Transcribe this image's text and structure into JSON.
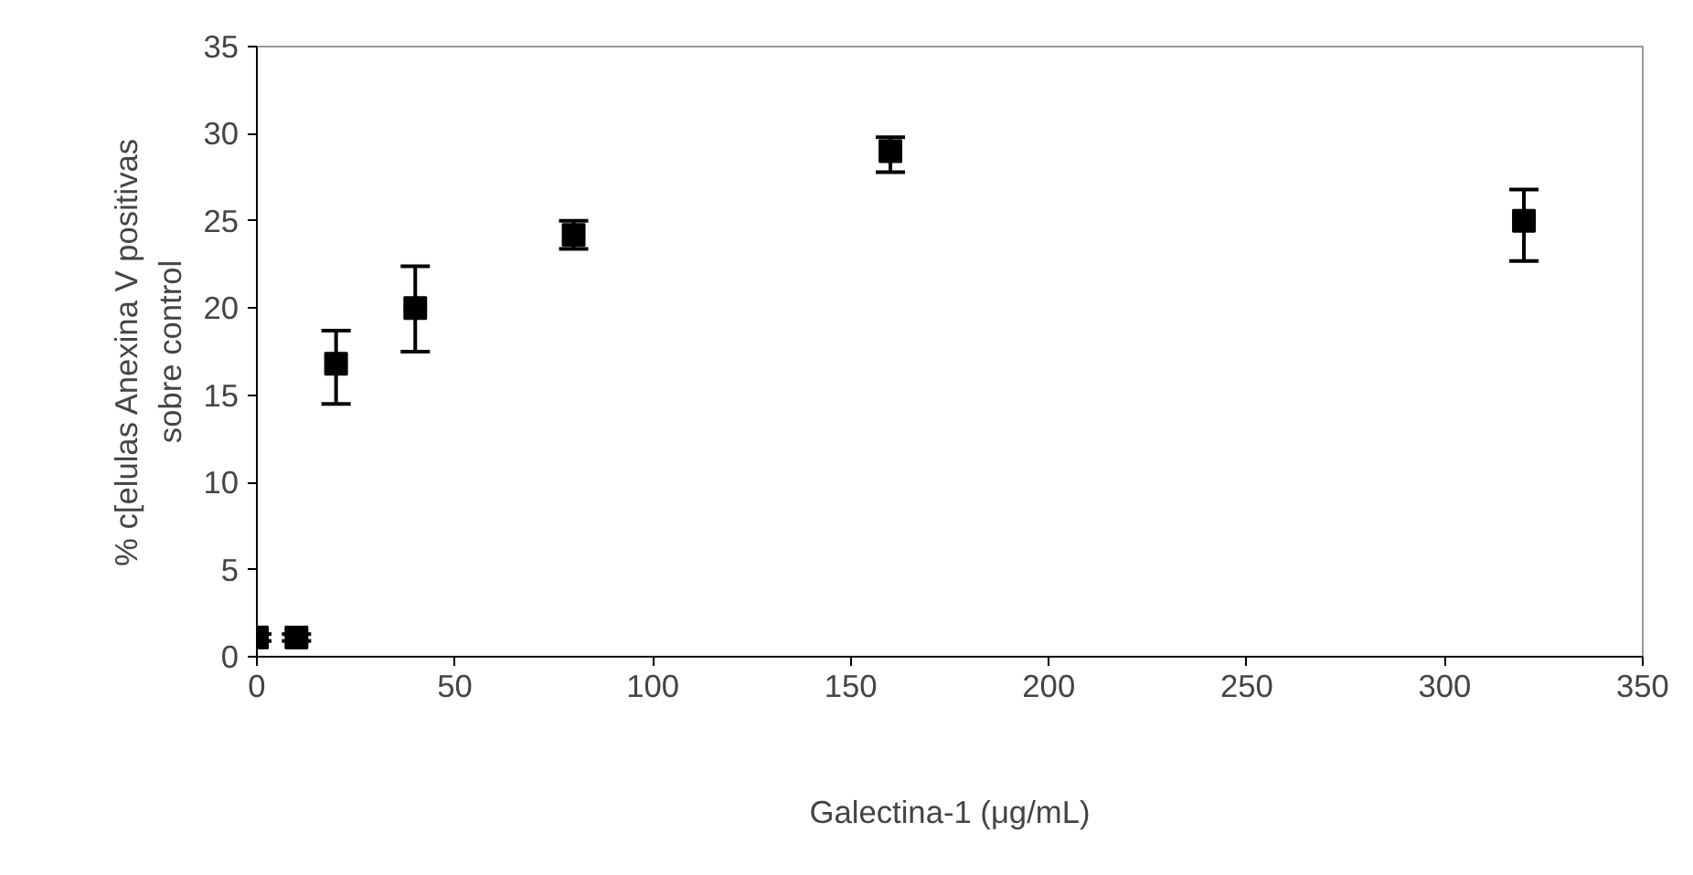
{
  "chart_data": {
    "type": "scatter",
    "xlabel": "Galectina-1 (μg/mL)",
    "ylabel": "% c[elulas Anexina V positivas\nsobre control",
    "x": [
      0,
      10,
      20,
      40,
      80,
      160,
      320
    ],
    "values": [
      1.1,
      1.1,
      16.8,
      20.0,
      24.2,
      29.0,
      25.0
    ],
    "errors": [
      0.2,
      0.2,
      [
        14.5,
        18.7
      ],
      [
        17.5,
        22.4
      ],
      [
        23.4,
        25.0
      ],
      [
        27.8,
        29.8
      ],
      [
        22.7,
        26.8
      ]
    ],
    "color": "#000000",
    "marker": "square",
    "xlim": [
      0,
      350
    ],
    "ylim": [
      0,
      35
    ],
    "xticks": [
      0,
      50,
      100,
      150,
      200,
      250,
      300,
      350
    ],
    "yticks": [
      0,
      5,
      10,
      15,
      20,
      25,
      30,
      35
    ],
    "grid": false
  }
}
